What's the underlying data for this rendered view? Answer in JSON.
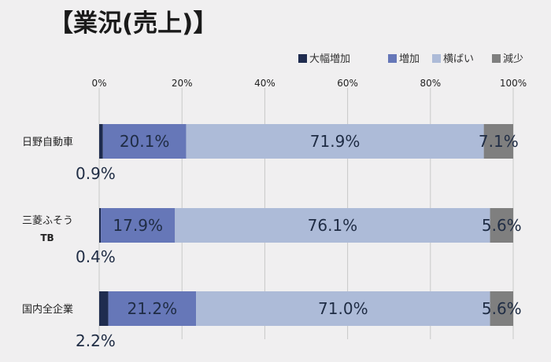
{
  "page": {
    "title": "【業況(売上)】"
  },
  "chart_data": {
    "type": "bar",
    "orientation": "horizontal",
    "stacked": true,
    "percent_stacked": true,
    "title": "【業況(売上)】",
    "xlim": [
      0,
      100
    ],
    "x_ticks": [
      "0%",
      "20%",
      "40%",
      "60%",
      "80%",
      "100%"
    ],
    "grid": true,
    "legend_position": "top-right",
    "categories": [
      {
        "label": "日野自動車",
        "sub_label": ""
      },
      {
        "label": "三菱ふそう",
        "sub_label": "TB"
      },
      {
        "label": "国内全企業",
        "sub_label": ""
      }
    ],
    "series": [
      {
        "name": "大幅増加",
        "color": "#1f2c4f",
        "values": [
          0.9,
          0.4,
          2.2
        ],
        "labels": [
          "0.9%",
          "0.4%",
          "2.2%"
        ],
        "label_placement": "below"
      },
      {
        "name": "増加",
        "color": "#6677b8",
        "values": [
          20.1,
          17.9,
          21.2
        ],
        "labels": [
          "20.1%",
          "17.9%",
          "21.2%"
        ],
        "label_placement": "inside"
      },
      {
        "name": "横ばい",
        "color": "#adbbd8",
        "values": [
          71.9,
          76.1,
          71.0
        ],
        "labels": [
          "71.9%",
          "76.1%",
          "71.0%"
        ],
        "label_placement": "inside"
      },
      {
        "name": "減少",
        "color": "#7f7f7f",
        "values": [
          7.1,
          5.6,
          5.6
        ],
        "labels": [
          "7.1%",
          "5.6%",
          "5.6%"
        ],
        "label_placement": "inside"
      }
    ]
  }
}
